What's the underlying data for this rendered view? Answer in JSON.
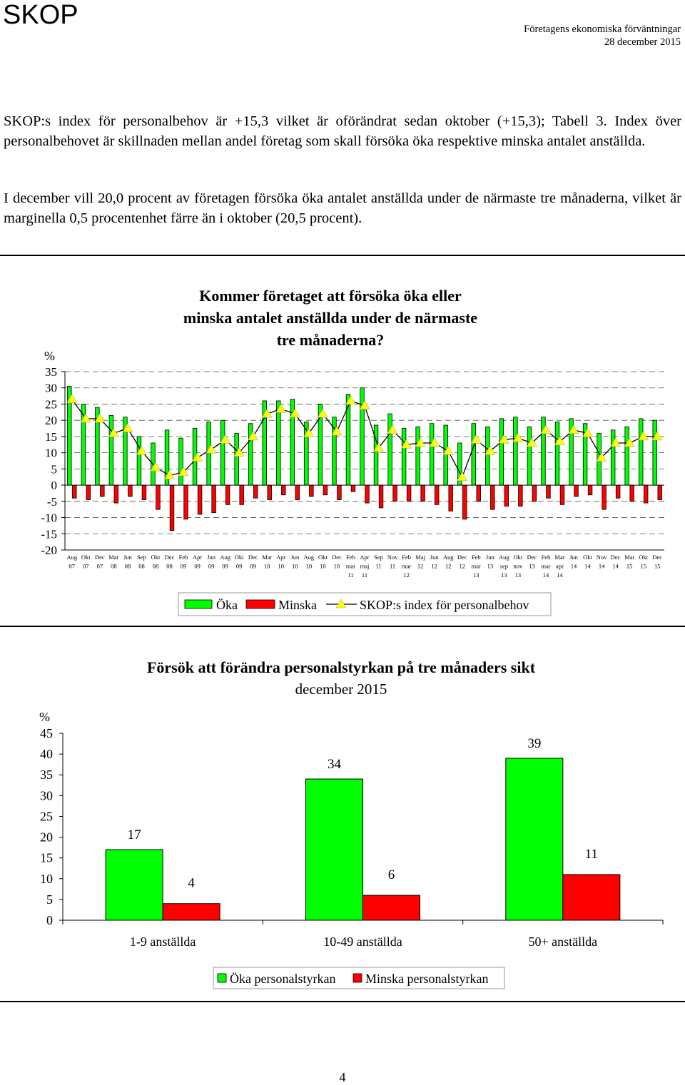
{
  "header": {
    "brand": "SKOP",
    "subtitle": "Företagens ekonomiska förväntningar",
    "date": "28 december 2015"
  },
  "text": {
    "para1": "SKOP:s index för personalbehov är +15,3 vilket är oförändrat sedan oktober (+15,3); Tabell 3. Index över personalbehovet är skillnaden mellan andel företag som skall försöka öka respektive minska antalet anställda.",
    "para2": "I december vill 20,0 procent av företagen försöka öka antalet anställda under de närmaste tre månaderna, vilket är marginella 0,5 procentenhet färre än i oktober (20,5 procent)."
  },
  "page_number": "4",
  "colors": {
    "increase": "#00ff00",
    "decrease": "#ff0000",
    "index": "#ffff00"
  },
  "chart_data": [
    {
      "type": "bar",
      "title": "Kommer företaget att försöka öka eller minska antalet anställda under de närmaste tre månaderna?",
      "ylabel": "%",
      "ylim": [
        -20,
        35
      ],
      "yticks": [
        35,
        30,
        25,
        20,
        15,
        10,
        5,
        0,
        -5,
        -10,
        -15,
        -20
      ],
      "grid": true,
      "legend_position": "bottom",
      "categories": [
        [
          "Aug",
          "07"
        ],
        [
          "Okt",
          "07"
        ],
        [
          "Dec",
          "07"
        ],
        [
          "Mar",
          "08"
        ],
        [
          "Jun",
          "08"
        ],
        [
          "Sep",
          "08"
        ],
        [
          "Okt",
          "08"
        ],
        [
          "Dec",
          "08"
        ],
        [
          "Feb",
          "09"
        ],
        [
          "Apr",
          "09"
        ],
        [
          "Jun",
          "09"
        ],
        [
          "Aug",
          "09"
        ],
        [
          "Okt",
          "09"
        ],
        [
          "Dec",
          "09"
        ],
        [
          "Mar",
          "10"
        ],
        [
          "Apr",
          "10"
        ],
        [
          "Jun",
          "10"
        ],
        [
          "Aug",
          "10"
        ],
        [
          "Okt",
          "10"
        ],
        [
          "Dec",
          "10"
        ],
        [
          "Feb",
          "mar",
          "11"
        ],
        [
          "Apr",
          "maj",
          "11"
        ],
        [
          "Sep",
          "11"
        ],
        [
          "Nov",
          "11"
        ],
        [
          "Feb",
          "mar",
          "12"
        ],
        [
          "Maj",
          "12"
        ],
        [
          "Jun",
          "12"
        ],
        [
          "Aug",
          "12"
        ],
        [
          "Dec",
          "12"
        ],
        [
          "Feb",
          "mar",
          "13"
        ],
        [
          "Jun",
          "13"
        ],
        [
          "Aug",
          "sep",
          "13"
        ],
        [
          "Okt",
          "nov",
          "13"
        ],
        [
          "Dec",
          "13"
        ],
        [
          "Feb",
          "mar",
          "14"
        ],
        [
          "Mar",
          "apr",
          "14"
        ],
        [
          "Jun",
          "14"
        ],
        [
          "Okt",
          "14"
        ],
        [
          "Nov",
          "14"
        ],
        [
          "Dec",
          "14"
        ],
        [
          "Mar",
          "15"
        ],
        [
          "Okt",
          "15"
        ],
        [
          "Dec",
          "15"
        ]
      ],
      "series": [
        {
          "name": "Öka",
          "values": [
            30.5,
            25,
            24,
            21.5,
            21,
            15,
            13,
            17,
            14.5,
            17.5,
            19.5,
            20,
            16,
            19,
            26,
            26,
            26.5,
            19.5,
            25,
            21,
            28,
            30,
            18.5,
            22,
            17.5,
            18,
            19,
            18.5,
            13,
            19,
            18,
            20.5,
            21,
            18,
            21,
            19.5,
            20.5,
            19,
            16,
            17,
            18,
            20.5,
            20
          ]
        },
        {
          "name": "Minska",
          "values": [
            -4,
            -4.5,
            -3.5,
            -5.5,
            -3.5,
            -4.5,
            -7.5,
            -14,
            -10.5,
            -9,
            -8.5,
            -6,
            -6,
            -4,
            -4.5,
            -3,
            -4.5,
            -3.5,
            -3,
            -4.5,
            -2,
            -5.5,
            -7,
            -5,
            -5,
            -5,
            -6,
            -8,
            -10.5,
            -5,
            -7.5,
            -6.5,
            -6.5,
            -5,
            -4,
            -6,
            -3.5,
            -3,
            -7.5,
            -4,
            -5,
            -5.5,
            -4.5
          ]
        },
        {
          "name": "SKOP:s index för personalbehov",
          "values": [
            26.5,
            20.5,
            20.5,
            16,
            17.5,
            10.5,
            5.5,
            3,
            4,
            8.5,
            11,
            14,
            10,
            15,
            22,
            23.5,
            22,
            16,
            22,
            16.5,
            26,
            24.5,
            11.5,
            17,
            12.5,
            13,
            13,
            10.5,
            2.5,
            14,
            10.5,
            14,
            14.5,
            13,
            17,
            13.5,
            17,
            16,
            8.5,
            13,
            13,
            15,
            15
          ]
        }
      ]
    },
    {
      "type": "bar",
      "title": "Försök att förändra personalstyrkan på tre månaders sikt",
      "subtitle": "december 2015",
      "ylabel": "%",
      "ylim": [
        0,
        45
      ],
      "yticks": [
        45,
        40,
        35,
        30,
        25,
        20,
        15,
        10,
        5,
        0
      ],
      "grid": false,
      "legend_position": "bottom",
      "categories": [
        "1-9 anställda",
        "10-49 anställda",
        "50+ anställda"
      ],
      "series": [
        {
          "name": "Öka personalstyrkan",
          "values": [
            17,
            34,
            39
          ]
        },
        {
          "name": "Minska personalstyrkan",
          "values": [
            4,
            6,
            11
          ]
        }
      ]
    }
  ]
}
